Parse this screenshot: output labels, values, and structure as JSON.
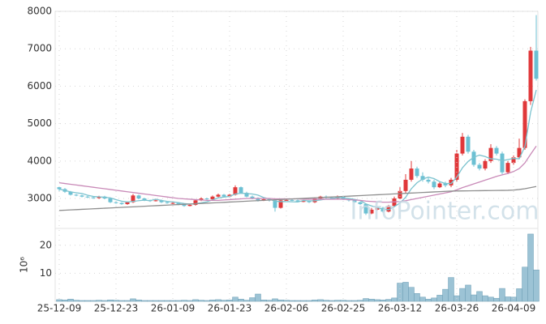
{
  "watermark": "InfoPointer.com",
  "chart_data": [
    {
      "type": "candlestick",
      "ylim": [
        2200,
        8000
      ],
      "yticks": [
        3000,
        4000,
        5000,
        6000,
        7000,
        8000
      ],
      "grid": true,
      "up_color": "#e0383a",
      "down_color": "#6cc0d3",
      "open": [
        3300,
        3250,
        3180,
        3100,
        3080,
        3050,
        3030,
        3010,
        3050,
        3000,
        2900,
        2880,
        2850,
        2900,
        3080,
        3000,
        2950,
        2930,
        2950,
        2900,
        2880,
        2880,
        2840,
        2800,
        2830,
        2950,
        3000,
        2980,
        3050,
        3100,
        3050,
        3100,
        3300,
        3150,
        3050,
        3000,
        2950,
        2980,
        2950,
        2750,
        2950,
        2960,
        2950,
        2920,
        2930,
        2900,
        3000,
        3050,
        3020,
        3000,
        3050,
        2980,
        2950,
        2900,
        2850,
        2600,
        2700,
        2750,
        2650,
        2800,
        3000,
        3200,
        3500,
        3800,
        3600,
        3500,
        3450,
        3300,
        3400,
        3350,
        3500,
        4200,
        4650,
        4250,
        3900,
        3800,
        4000,
        4350,
        4200,
        3700,
        3950,
        4100,
        4350,
        5600,
        6950
      ],
      "high": [
        3320,
        3280,
        3200,
        3120,
        3100,
        3070,
        3050,
        3070,
        3070,
        3020,
        2920,
        2900,
        2920,
        3120,
        3100,
        3020,
        2970,
        2970,
        2970,
        2920,
        2910,
        2900,
        2860,
        2850,
        2980,
        3030,
        3020,
        3080,
        3130,
        3120,
        3120,
        3350,
        3320,
        3180,
        3080,
        3030,
        3010,
        3000,
        2980,
        2980,
        2990,
        2980,
        2970,
        2950,
        2950,
        3030,
        3070,
        3080,
        3040,
        3080,
        3070,
        3000,
        2970,
        2920,
        2870,
        2750,
        2780,
        2780,
        2830,
        3050,
        3300,
        3650,
        4000,
        3850,
        3700,
        3550,
        3500,
        3450,
        3450,
        3550,
        4300,
        4750,
        4700,
        4300,
        3950,
        4050,
        4450,
        4400,
        4250,
        4000,
        4150,
        4600,
        5650,
        7050,
        7900
      ],
      "low": [
        3200,
        3150,
        3080,
        3060,
        3030,
        3010,
        2990,
        2990,
        2980,
        2880,
        2860,
        2830,
        2830,
        2880,
        2980,
        2930,
        2910,
        2920,
        2880,
        2860,
        2850,
        2820,
        2780,
        2790,
        2810,
        2930,
        2960,
        2960,
        3030,
        3030,
        3030,
        3080,
        3130,
        3030,
        2980,
        2920,
        2930,
        2920,
        2650,
        2730,
        2930,
        2930,
        2900,
        2900,
        2880,
        2880,
        2980,
        3000,
        2980,
        2980,
        2960,
        2920,
        2880,
        2830,
        2560,
        2580,
        2680,
        2620,
        2630,
        2780,
        2980,
        3150,
        3450,
        3550,
        3450,
        3400,
        3250,
        3280,
        3300,
        3300,
        3450,
        4150,
        4200,
        3850,
        3750,
        3750,
        3950,
        4150,
        3650,
        3650,
        3900,
        4050,
        4300,
        5500,
        6150
      ],
      "close": [
        3250,
        3180,
        3100,
        3080,
        3050,
        3030,
        3010,
        3050,
        3000,
        2900,
        2880,
        2850,
        2900,
        3080,
        3000,
        2950,
        2930,
        2950,
        2900,
        2880,
        2880,
        2840,
        2800,
        2830,
        2950,
        3000,
        2980,
        3050,
        3100,
        3050,
        3100,
        3300,
        3150,
        3050,
        3000,
        2950,
        2980,
        2950,
        2750,
        2950,
        2960,
        2950,
        2920,
        2930,
        2900,
        3000,
        3050,
        3020,
        3000,
        3050,
        2980,
        2950,
        2900,
        2850,
        2600,
        2700,
        2750,
        2650,
        2800,
        3000,
        3200,
        3500,
        3800,
        3600,
        3500,
        3450,
        3300,
        3400,
        3350,
        3500,
        4200,
        4650,
        4250,
        3900,
        3800,
        4000,
        4350,
        4200,
        3700,
        3950,
        4100,
        4350,
        5600,
        6950,
        6200
      ],
      "series": [
        {
          "color": "#7cc3cf",
          "values": [
            3250,
            3215,
            3177,
            3153,
            3132,
            3088,
            3054,
            3044,
            3034,
            3018,
            2968,
            2928,
            2906,
            2922,
            2942,
            2956,
            2942,
            2982,
            2946,
            2922,
            2908,
            2890,
            2864,
            2850,
            2860,
            2884,
            2912,
            2962,
            3016,
            3036,
            3056,
            3120,
            3140,
            3130,
            3120,
            3090,
            3026,
            2986,
            2926,
            2916,
            2918,
            2912,
            2906,
            2946,
            2936,
            2940,
            2960,
            2984,
            2994,
            3024,
            3020,
            3000,
            2976,
            2946,
            2856,
            2800,
            2760,
            2710,
            2700,
            2780,
            2880,
            3030,
            3260,
            3420,
            3520,
            3570,
            3530,
            3450,
            3400,
            3400,
            3570,
            3820,
            3990,
            4100,
            4160,
            4120,
            4060,
            4050,
            4010,
            4040,
            4070,
            4060,
            4390,
            5300,
            5900
          ]
        },
        {
          "color": "#c98ab8",
          "values": [
            3420,
            3400,
            3380,
            3360,
            3340,
            3320,
            3300,
            3280,
            3260,
            3240,
            3220,
            3200,
            3180,
            3160,
            3140,
            3120,
            3100,
            3080,
            3060,
            3040,
            3020,
            3000,
            2990,
            2980,
            2970,
            2960,
            2950,
            2950,
            2950,
            2960,
            2970,
            2980,
            2990,
            3000,
            3000,
            3000,
            3000,
            3000,
            2990,
            2990,
            2990,
            2990,
            2990,
            2980,
            2980,
            2980,
            2980,
            2980,
            2980,
            2980,
            2980,
            2970,
            2960,
            2950,
            2930,
            2920,
            2910,
            2900,
            2900,
            2910,
            2920,
            2940,
            2970,
            3000,
            3030,
            3060,
            3090,
            3120,
            3150,
            3180,
            3230,
            3290,
            3340,
            3390,
            3440,
            3490,
            3540,
            3590,
            3630,
            3670,
            3720,
            3800,
            3950,
            4180,
            4400
          ]
        },
        {
          "color": "#8e8e8e",
          "values": [
            2680,
            2687,
            2695,
            2702,
            2710,
            2717,
            2725,
            2732,
            2740,
            2747,
            2755,
            2762,
            2770,
            2777,
            2785,
            2792,
            2800,
            2807,
            2815,
            2822,
            2830,
            2837,
            2845,
            2852,
            2860,
            2867,
            2875,
            2882,
            2890,
            2897,
            2905,
            2912,
            2920,
            2927,
            2935,
            2942,
            2950,
            2957,
            2965,
            2972,
            2980,
            2987,
            2995,
            3002,
            3010,
            3017,
            3025,
            3032,
            3040,
            3047,
            3055,
            3062,
            3070,
            3077,
            3085,
            3092,
            3100,
            3107,
            3115,
            3122,
            3130,
            3137,
            3145,
            3152,
            3160,
            3167,
            3175,
            3182,
            3190,
            3197,
            3200,
            3202,
            3204,
            3206,
            3208,
            3210,
            3212,
            3214,
            3216,
            3218,
            3225,
            3240,
            3260,
            3290,
            3320
          ]
        }
      ]
    },
    {
      "type": "bar",
      "y_label": "10⁶",
      "ylim": [
        0,
        26
      ],
      "yticks": [
        10,
        20
      ],
      "grid": true,
      "color": "#9cc3d5",
      "edge_color": "#6f9fb5",
      "categories": [
        "25-12-09",
        null,
        null,
        null,
        null,
        null,
        null,
        null,
        null,
        null,
        "25-12-23",
        null,
        null,
        null,
        null,
        null,
        null,
        null,
        null,
        null,
        "26-01-09",
        null,
        null,
        null,
        null,
        null,
        null,
        null,
        null,
        null,
        "26-01-23",
        null,
        null,
        null,
        null,
        null,
        null,
        null,
        null,
        null,
        "26-02-06",
        null,
        null,
        null,
        null,
        null,
        null,
        null,
        null,
        null,
        "26-02-25",
        null,
        null,
        null,
        null,
        null,
        null,
        null,
        null,
        null,
        "26-03-12",
        null,
        null,
        null,
        null,
        null,
        null,
        null,
        null,
        null,
        "26-03-26",
        null,
        null,
        null,
        null,
        null,
        null,
        null,
        null,
        null,
        "26-04-09",
        null,
        null,
        null,
        null
      ],
      "values": [
        0.6,
        0.5,
        0.8,
        0.4,
        0.3,
        0.3,
        0.3,
        0.4,
        0.3,
        0.5,
        0.4,
        0.3,
        0.3,
        0.9,
        0.5,
        0.3,
        0.3,
        0.3,
        0.3,
        0.3,
        0.3,
        0.3,
        0.4,
        0.3,
        0.6,
        0.4,
        0.3,
        0.5,
        0.6,
        0.4,
        0.5,
        1.5,
        0.8,
        0.4,
        1.3,
        2.6,
        0.5,
        0.4,
        0.9,
        0.5,
        0.4,
        0.3,
        0.3,
        0.3,
        0.3,
        0.5,
        0.6,
        0.4,
        0.3,
        0.4,
        0.4,
        0.3,
        0.3,
        0.4,
        1.0,
        0.8,
        0.6,
        0.5,
        0.7,
        1.2,
        6.5,
        6.8,
        5.0,
        2.8,
        1.5,
        0.8,
        1.2,
        2.2,
        4.3,
        8.5,
        2.0,
        4.6,
        5.8,
        2.3,
        3.5,
        2.0,
        1.5,
        1.1,
        4.6,
        1.6,
        1.5,
        4.5,
        12.2,
        24.0,
        11.2
      ]
    }
  ]
}
